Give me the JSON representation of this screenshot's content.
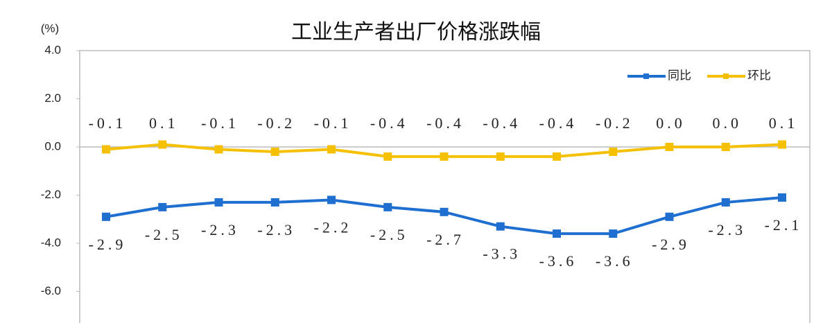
{
  "chart_data": {
    "type": "line",
    "title": "工业生产者出厂价格涨跌幅",
    "y_unit": "(%)",
    "categories": [
      null,
      null,
      null,
      null,
      null,
      null,
      null,
      null,
      null,
      null,
      null,
      null,
      null
    ],
    "series": [
      {
        "name": "同比",
        "color": "#1f6fd1",
        "values": [
          -2.9,
          -2.5,
          -2.3,
          -2.3,
          -2.2,
          -2.5,
          -2.7,
          -3.3,
          -3.6,
          -3.6,
          -2.9,
          -2.3,
          -2.1
        ],
        "value_labels": [
          "-2.9",
          "-2.5",
          "-2.3",
          "-2.3",
          "-2.2",
          "-2.5",
          "-2.7",
          "-3.3",
          "-3.6",
          "-3.6",
          "-2.9",
          "-2.3",
          "-2.1"
        ]
      },
      {
        "name": "环比",
        "color": "#f5c000",
        "values": [
          -0.1,
          0.1,
          -0.1,
          -0.2,
          -0.1,
          -0.4,
          -0.4,
          -0.4,
          -0.4,
          -0.2,
          0.0,
          0.0,
          0.1
        ],
        "value_labels": [
          "-0.1",
          "0.1",
          "-0.1",
          "-0.2",
          "-0.1",
          "-0.4",
          "-0.4",
          "-0.4",
          "-0.4",
          "-0.2",
          "0.0",
          "0.0",
          "0.1"
        ]
      }
    ],
    "ylim": [
      -7.2,
      4
    ],
    "yticks": [
      {
        "value": 4,
        "label": "4.0"
      },
      {
        "value": 2,
        "label": "2.0"
      },
      {
        "value": 0,
        "label": "0.0"
      },
      {
        "value": -2,
        "label": "-2.0"
      },
      {
        "value": -4,
        "label": "-4.0"
      },
      {
        "value": -6,
        "label": "-6.0"
      }
    ],
    "legend": "top-right"
  }
}
